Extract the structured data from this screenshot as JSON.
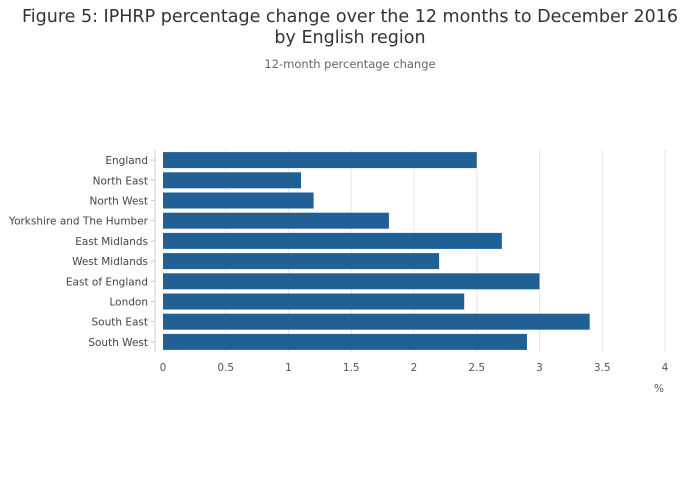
{
  "title": {
    "line1": "Figure 5: IPHRP percentage change over the 12 months to December 2016",
    "line2": "by English region"
  },
  "subtitle": "12-month percentage change",
  "chart_data": {
    "type": "bar",
    "orientation": "horizontal",
    "categories": [
      "England",
      "North East",
      "North West",
      "Yorkshire and The Humber",
      "East Midlands",
      "West Midlands",
      "East of England",
      "London",
      "South East",
      "South West"
    ],
    "values": [
      2.5,
      1.1,
      1.2,
      1.8,
      2.7,
      2.2,
      3.0,
      2.4,
      3.4,
      2.9
    ],
    "xlim": [
      0,
      4
    ],
    "xticks": [
      "0",
      "0.5",
      "1",
      "1.5",
      "2",
      "2.5",
      "3",
      "3.5",
      "4"
    ],
    "xlabel": "%",
    "ylabel": "",
    "grid": true,
    "colors": {
      "bar": "#206095",
      "grid": "#e6e6e6",
      "axis": "#cccccc"
    }
  }
}
